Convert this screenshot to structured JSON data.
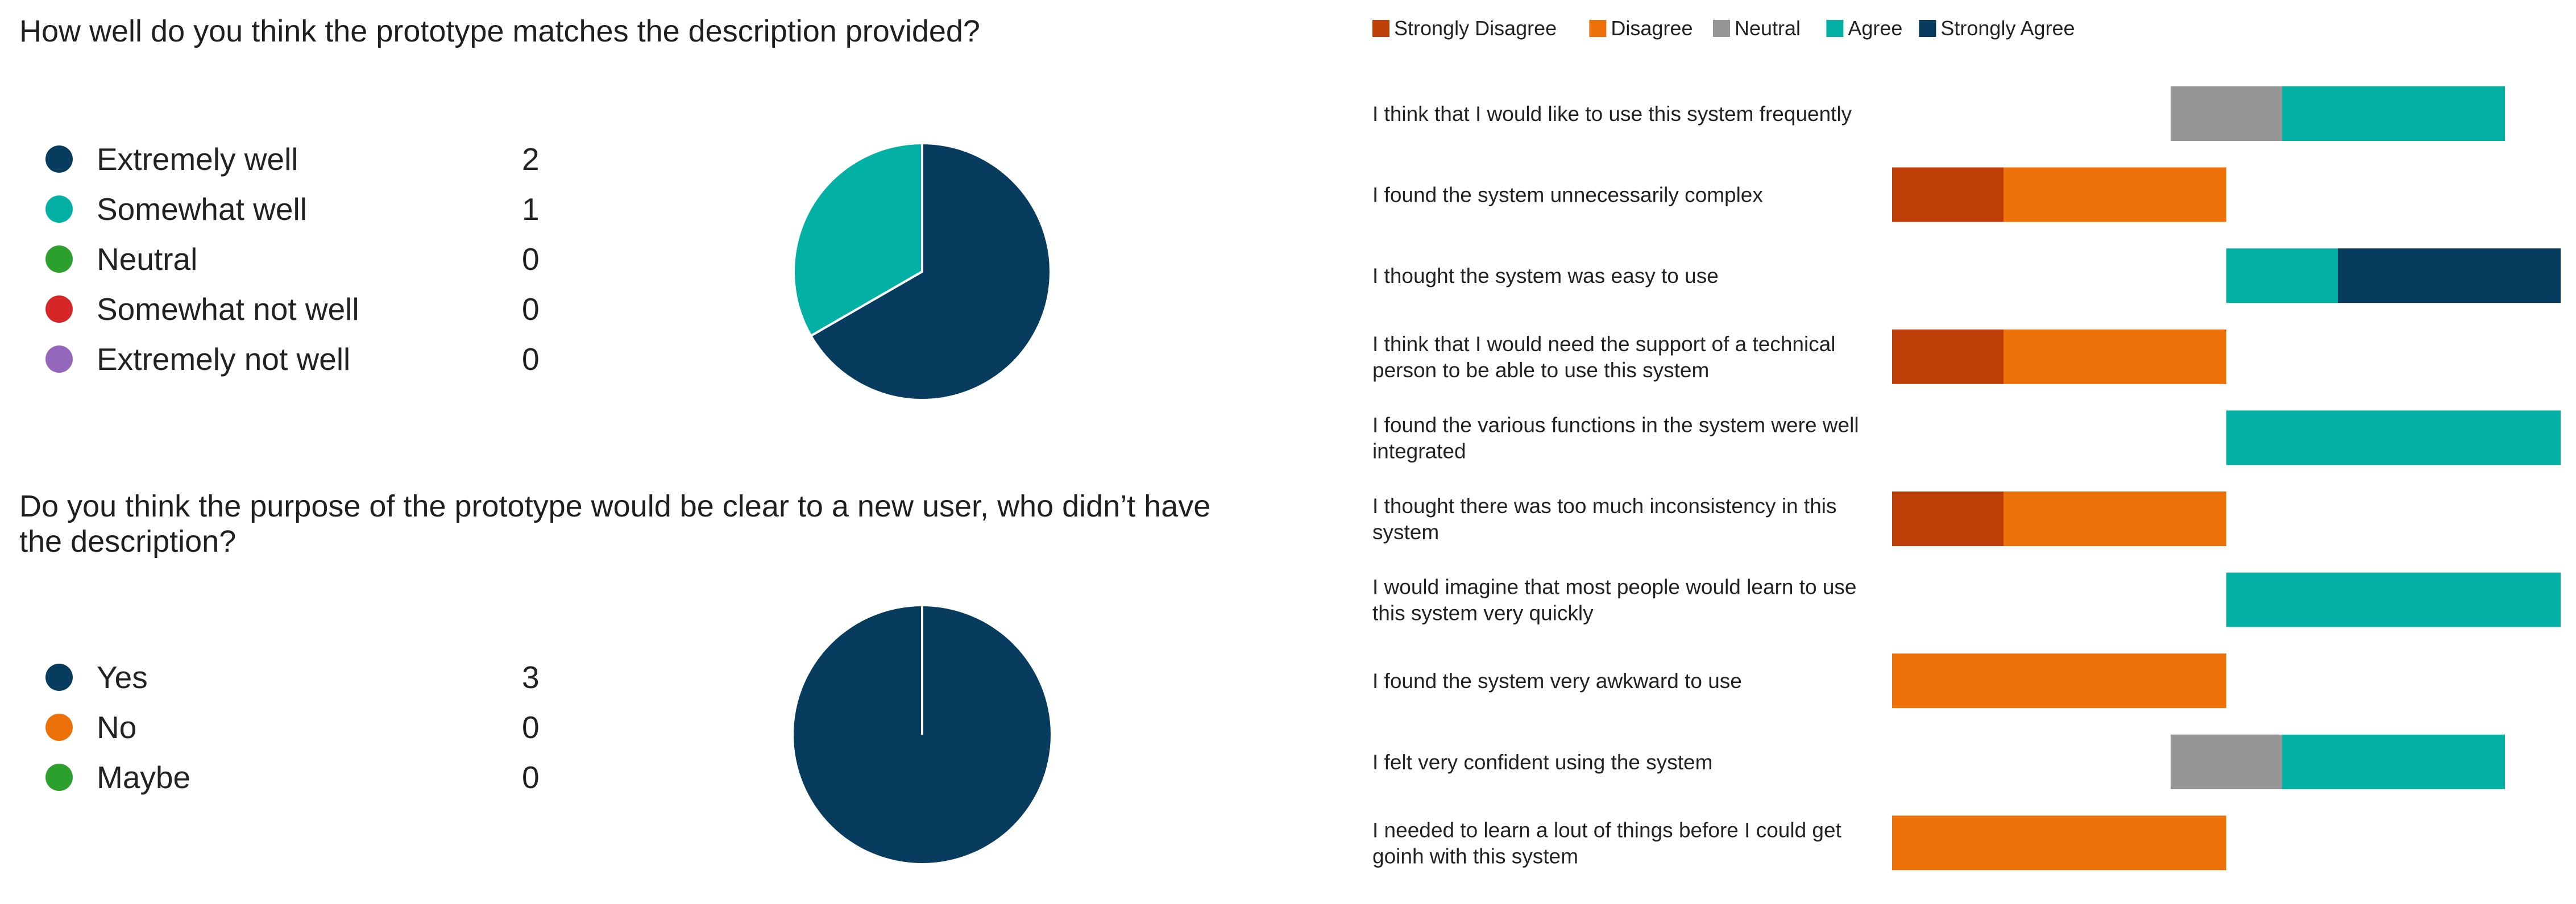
{
  "questions": [
    {
      "title": "How well do you think the prototype matches the description provided?",
      "options": [
        {
          "label": "Extremely well",
          "count": "2",
          "color": "#073c5f"
        },
        {
          "label": "Somewhat well",
          "count": "1",
          "color": "#02b1a4"
        },
        {
          "label": "Neutral",
          "count": "0",
          "color": "#2ca02c"
        },
        {
          "label": "Somewhat not well",
          "count": "0",
          "color": "#d62728"
        },
        {
          "label": "Extremely not well",
          "count": "0",
          "color": "#9467bd"
        }
      ]
    },
    {
      "title": "Do you think the purpose of the prototype would be clear to a new user, who didn’t have the description?",
      "options": [
        {
          "label": "Yes",
          "count": "3",
          "color": "#073c5f"
        },
        {
          "label": "No",
          "count": "0",
          "color": "#ed7008"
        },
        {
          "label": "Maybe",
          "count": "0",
          "color": "#2ca02c"
        }
      ]
    }
  ],
  "chart_data": [
    {
      "type": "pie",
      "labels": [
        "Extremely well",
        "Somewhat well",
        "Neutral",
        "Somewhat not well",
        "Extremely not well"
      ],
      "values": [
        2,
        1,
        0,
        0,
        0
      ],
      "colors": [
        "#073c5f",
        "#02b1a4",
        "#2ca02c",
        "#d62728",
        "#9467bd"
      ]
    },
    {
      "type": "pie",
      "labels": [
        "Yes",
        "No",
        "Maybe"
      ],
      "values": [
        3,
        0,
        0
      ],
      "colors": [
        "#073c5f",
        "#ed7008",
        "#2ca02c"
      ]
    },
    {
      "type": "bar",
      "orientation": "horizontal",
      "stacking": "diverging",
      "legend_position": "top-left",
      "categories": [
        "I think that I would like to use this system frequently",
        "I found the system unnecessarily complex",
        "I thought the system was easy to use",
        "I think that I would need the support of a technical person to be able to use this system",
        "I found the various functions in the system were well integrated",
        "I thought there was too much inconsistency in this system",
        "I would imagine that most people would learn to use this system very quickly",
        "I found the system very awkward to use",
        "I felt very confident using the system",
        "I needed to learn a lout of things before I could get goinh with this system"
      ],
      "category_lines": [
        [
          "I think that I would like to use this system frequently"
        ],
        [
          "I found the system unnecessarily complex"
        ],
        [
          "I thought the system was easy to use"
        ],
        [
          "I think that I would need the support of a technical",
          "person to be able to use this system"
        ],
        [
          "I found the various functions in the system were well",
          "integrated"
        ],
        [
          "I thought there was too much inconsistency in this",
          "system"
        ],
        [
          "I would imagine that most people would learn to use",
          "this system very quickly"
        ],
        [
          "I found the system very awkward to use"
        ],
        [
          "I felt very confident using the system"
        ],
        [
          "I needed to learn a lout of things before I could get",
          "goinh with this system"
        ]
      ],
      "series": [
        {
          "name": "Strongly Disagree",
          "color": "#be3f08",
          "values": [
            0,
            1,
            0,
            1,
            0,
            1,
            0,
            0,
            0,
            0
          ]
        },
        {
          "name": "Disagree",
          "color": "#ed7008",
          "values": [
            0,
            2,
            0,
            2,
            0,
            2,
            0,
            3,
            0,
            3
          ]
        },
        {
          "name": "Neutral",
          "color": "#969696",
          "values": [
            1,
            0,
            0,
            0,
            0,
            0,
            0,
            0,
            1,
            0
          ]
        },
        {
          "name": "Agree",
          "color": "#02b1a4",
          "values": [
            2,
            0,
            1,
            0,
            3,
            0,
            3,
            0,
            2,
            0
          ]
        },
        {
          "name": "Strongly Agree",
          "color": "#073c5f",
          "values": [
            0,
            0,
            2,
            0,
            0,
            0,
            0,
            0,
            0,
            0
          ]
        }
      ]
    }
  ]
}
